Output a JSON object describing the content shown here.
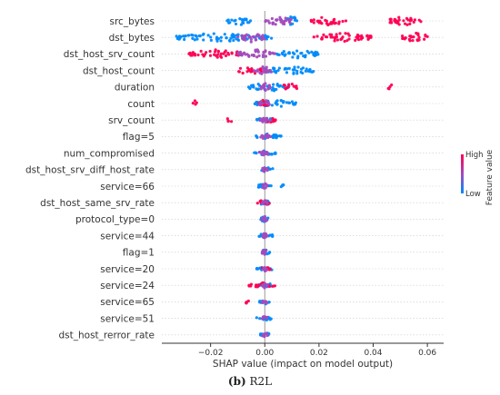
{
  "chart_data": {
    "type": "scatter",
    "subtype": "shap-beeswarm",
    "features": [
      "src_bytes",
      "dst_bytes",
      "dst_host_srv_count",
      "dst_host_count",
      "duration",
      "count",
      "srv_count",
      "flag=5",
      "num_compromised",
      "dst_host_srv_diff_host_rate",
      "service=66",
      "dst_host_same_srv_rate",
      "protocol_type=0",
      "service=44",
      "flag=1",
      "service=20",
      "service=24",
      "service=65",
      "service=51",
      "dst_host_rerror_rate"
    ],
    "xlabel": "SHAP value (impact on model output)",
    "xlim": [
      -0.038,
      0.066
    ],
    "xticks": [
      -0.02,
      0.0,
      0.02,
      0.04,
      0.06
    ],
    "xtick_labels": [
      "−0.02",
      "0.00",
      "0.02",
      "0.04",
      "0.06"
    ],
    "colorbar": {
      "title": "Feature value",
      "high_label": "High",
      "low_label": "Low",
      "high_color": "#ff0052",
      "low_color": "#008bfb"
    },
    "rows": [
      {
        "low": [
          [
            -0.015,
            -0.005
          ],
          [
            0.007,
            0.013
          ]
        ],
        "high": [
          [
            0.017,
            0.03
          ],
          [
            0.045,
            0.058
          ]
        ],
        "mid": [
          [
            0.0,
            0.01
          ]
        ],
        "spread": 5
      },
      {
        "low": [
          [
            -0.033,
            -0.001
          ],
          [
            0.0,
            0.003
          ]
        ],
        "high": [
          [
            0.018,
            0.04
          ],
          [
            0.05,
            0.061
          ]
        ],
        "mid": [
          [
            -0.01,
            0.0
          ]
        ],
        "spread": 5
      },
      {
        "low": [
          [
            0.003,
            0.02
          ]
        ],
        "high": [
          [
            -0.028,
            -0.008
          ]
        ],
        "mid": [
          [
            -0.01,
            0.004
          ]
        ],
        "spread": 5
      },
      {
        "low": [
          [
            0.0,
            0.018
          ]
        ],
        "high": [
          [
            -0.01,
            -0.001
          ]
        ],
        "mid": [
          [
            -0.004,
            0.003
          ]
        ],
        "spread": 5
      },
      {
        "low": [
          [
            -0.006,
            0.01
          ]
        ],
        "high": [
          [
            0.006,
            0.012
          ],
          [
            0.045,
            0.047
          ]
        ],
        "mid": [
          [
            -0.002,
            0.002
          ]
        ],
        "spread": 5
      },
      {
        "low": [
          [
            -0.004,
            0.012
          ]
        ],
        "high": [
          [
            -0.027,
            -0.025
          ],
          [
            -0.003,
            0.002
          ]
        ],
        "mid": [
          [
            -0.002,
            0.002
          ]
        ],
        "spread": 4
      },
      {
        "low": [
          [
            -0.003,
            0.003
          ]
        ],
        "high": [
          [
            -0.014,
            -0.012
          ],
          [
            0.0,
            0.004
          ]
        ],
        "mid": [
          [
            -0.002,
            0.002
          ]
        ],
        "spread": 3
      },
      {
        "low": [
          [
            -0.004,
            0.006
          ]
        ],
        "high": [],
        "mid": [
          [
            -0.002,
            0.002
          ]
        ],
        "spread": 3
      },
      {
        "low": [
          [
            -0.004,
            0.004
          ]
        ],
        "high": [],
        "mid": [
          [
            -0.002,
            0.002
          ]
        ],
        "spread": 3
      },
      {
        "low": [
          [
            -0.002,
            0.003
          ]
        ],
        "high": [
          [
            -0.001,
            0.001
          ]
        ],
        "mid": [
          [
            -0.001,
            0.001
          ]
        ],
        "spread": 3
      },
      {
        "low": [
          [
            -0.003,
            0.003
          ],
          [
            0.006,
            0.007
          ]
        ],
        "high": [],
        "mid": [
          [
            -0.001,
            0.001
          ]
        ],
        "spread": 3
      },
      {
        "low": [
          [
            -0.002,
            0.002
          ]
        ],
        "high": [
          [
            -0.003,
            0.002
          ]
        ],
        "mid": [
          [
            -0.001,
            0.001
          ]
        ],
        "spread": 3
      },
      {
        "low": [
          [
            -0.002,
            0.002
          ]
        ],
        "high": [],
        "mid": [
          [
            -0.001,
            0.001
          ]
        ],
        "spread": 3
      },
      {
        "low": [
          [
            -0.003,
            0.003
          ]
        ],
        "high": [],
        "mid": [
          [
            -0.001,
            0.001
          ]
        ],
        "spread": 3
      },
      {
        "low": [
          [
            -0.002,
            0.002
          ]
        ],
        "high": [],
        "mid": [
          [
            -0.001,
            0.001
          ]
        ],
        "spread": 3
      },
      {
        "low": [
          [
            -0.003,
            0.003
          ]
        ],
        "high": [
          [
            -0.001,
            0.002
          ]
        ],
        "mid": [
          [
            -0.001,
            0.001
          ]
        ],
        "spread": 3
      },
      {
        "low": [
          [
            -0.003,
            0.003
          ]
        ],
        "high": [
          [
            -0.006,
            0.004
          ]
        ],
        "mid": [
          [
            -0.001,
            0.001
          ]
        ],
        "spread": 3
      },
      {
        "low": [
          [
            -0.002,
            0.002
          ]
        ],
        "high": [
          [
            -0.007,
            -0.006
          ]
        ],
        "mid": [
          [
            -0.001,
            0.001
          ]
        ],
        "spread": 3
      },
      {
        "low": [
          [
            -0.003,
            0.003
          ]
        ],
        "high": [],
        "mid": [
          [
            -0.001,
            0.001
          ]
        ],
        "spread": 3
      },
      {
        "low": [
          [
            -0.002,
            0.002
          ]
        ],
        "high": [],
        "mid": [
          [
            -0.001,
            0.001
          ]
        ],
        "spread": 3
      }
    ]
  },
  "caption": {
    "label": "(b)",
    "text": " R2L"
  }
}
